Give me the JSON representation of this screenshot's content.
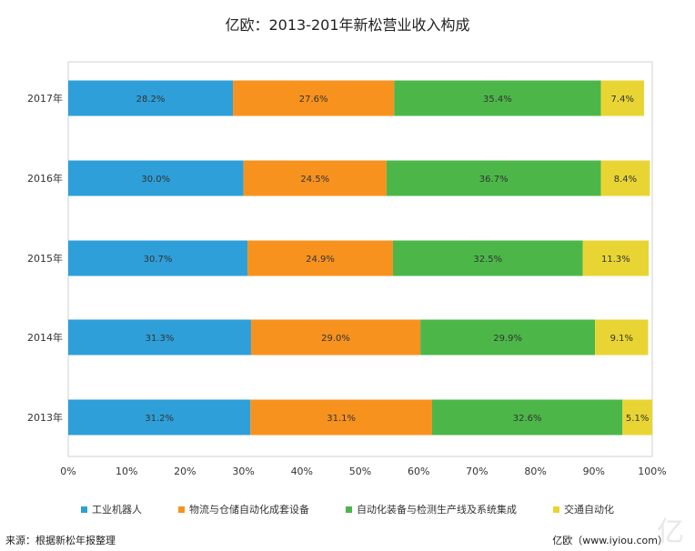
{
  "chart_data": {
    "type": "bar",
    "orientation": "horizontal",
    "stacked": true,
    "title": "亿欧：2013-201年新松营业收入构成",
    "categories": [
      "2017年",
      "2016年",
      "2015年",
      "2014年",
      "2013年"
    ],
    "series": [
      {
        "name": "工业机器人",
        "color": "#2e9fd8",
        "values": [
          28.2,
          30.0,
          30.7,
          31.3,
          31.2
        ],
        "labels": [
          "28.2%",
          "30.0%",
          "30.7%",
          "31.3%",
          "31.2%"
        ]
      },
      {
        "name": "物流与仓储自动化成套设备",
        "color": "#f7921e",
        "values": [
          27.6,
          24.5,
          24.9,
          29.0,
          31.1
        ],
        "labels": [
          "27.6%",
          "24.5%",
          "24.9%",
          "29.0%",
          "31.1%"
        ]
      },
      {
        "name": "自动化装备与检测生产线及系统集成",
        "color": "#4cb748",
        "values": [
          35.4,
          36.7,
          32.5,
          29.9,
          32.6
        ],
        "labels": [
          "35.4%",
          "36.7%",
          "32.5%",
          "29.9%",
          "32.6%"
        ]
      },
      {
        "name": "交通自动化",
        "color": "#e8d534",
        "values": [
          7.4,
          8.4,
          11.3,
          9.1,
          5.1
        ],
        "labels": [
          "7.4%",
          "8.4%",
          "11.3%",
          "9.1%",
          "5.1%"
        ]
      }
    ],
    "xticks": [
      "0%",
      "10%",
      "20%",
      "30%",
      "40%",
      "50%",
      "60%",
      "70%",
      "80%",
      "90%",
      "100%"
    ],
    "xlim": [
      0,
      100
    ],
    "grid": false,
    "legend_position": "bottom"
  },
  "footer": {
    "source": "来源：根据新松年报整理",
    "credit": "亿欧（www.iyiou.com）"
  },
  "watermark": "亿"
}
